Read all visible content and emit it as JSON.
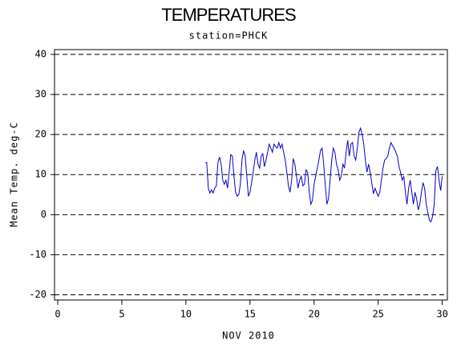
{
  "chart_data": {
    "type": "line",
    "title": "TEMPERATURES",
    "subtitle": "station=PHCK",
    "x_label": "NOV 2010",
    "y_label": "Mean Temp. deg-C",
    "xlim": [
      -0.25,
      30.4
    ],
    "xticks": [
      0,
      5,
      10,
      15,
      20,
      25,
      30
    ],
    "ylim": [
      -21.3,
      41.2
    ],
    "yticks": [
      -20,
      -10,
      0,
      10,
      20,
      30,
      40
    ],
    "grid": true,
    "x": [
      11.5,
      11.625,
      11.75,
      11.875,
      12,
      12.125,
      12.25,
      12.375,
      12.5,
      12.625,
      12.75,
      12.875,
      13,
      13.125,
      13.25,
      13.375,
      13.5,
      13.625,
      13.75,
      13.875,
      14,
      14.125,
      14.25,
      14.375,
      14.5,
      14.625,
      14.75,
      14.875,
      15,
      15.125,
      15.25,
      15.375,
      15.5,
      15.625,
      15.75,
      15.875,
      16,
      16.125,
      16.25,
      16.375,
      16.5,
      16.625,
      16.75,
      16.875,
      17,
      17.125,
      17.25,
      17.375,
      17.5,
      17.625,
      17.75,
      17.875,
      18,
      18.125,
      18.25,
      18.375,
      18.5,
      18.625,
      18.75,
      18.875,
      19,
      19.125,
      19.25,
      19.375,
      19.5,
      19.625,
      19.75,
      19.875,
      20,
      20.125,
      20.25,
      20.375,
      20.5,
      20.625,
      20.75,
      20.875,
      21,
      21.125,
      21.25,
      21.375,
      21.5,
      21.625,
      21.75,
      21.875,
      22,
      22.125,
      22.25,
      22.375,
      22.5,
      22.625,
      22.75,
      22.875,
      23,
      23.125,
      23.25,
      23.375,
      23.5,
      23.625,
      23.75,
      23.875,
      24,
      24.125,
      24.25,
      24.375,
      24.5,
      24.625,
      24.75,
      24.875,
      25,
      25.125,
      25.25,
      25.375,
      25.5,
      25.625,
      25.75,
      25.875,
      26,
      26.125,
      26.25,
      26.375,
      26.5,
      26.625,
      26.75,
      26.875,
      27,
      27.125,
      27.25,
      27.375,
      27.5,
      27.625,
      27.75,
      27.875,
      28,
      28.125,
      28.25,
      28.375,
      28.5,
      28.625,
      28.75,
      28.875,
      29,
      29.125,
      29.25,
      29.375,
      29.5,
      29.625,
      29.75,
      29.875,
      30
    ],
    "series": [
      {
        "name": "Mean Temp",
        "color": "#0000cc",
        "values": [
          13,
          13,
          6.6,
          5.4,
          6.2,
          5.4,
          6.6,
          7.2,
          13,
          14.4,
          12.6,
          8.6,
          7.6,
          8.6,
          6.6,
          10.6,
          15,
          14.6,
          9.6,
          5.6,
          4.6,
          5,
          7.6,
          13.6,
          16,
          14.6,
          9.6,
          4.6,
          5.6,
          8,
          10.6,
          13.6,
          15.6,
          12.6,
          11.6,
          14.6,
          15.2,
          12,
          13.6,
          15.6,
          17.6,
          16.6,
          15.6,
          17.6,
          17,
          16.6,
          18,
          16.6,
          17.6,
          15.6,
          13.6,
          10.6,
          7.2,
          5.6,
          8.6,
          14,
          12.6,
          9.6,
          6.6,
          8.6,
          9.6,
          7.2,
          7.6,
          11.2,
          10.6,
          5.6,
          2.6,
          3.6,
          7.6,
          9.6,
          11.6,
          13.6,
          16,
          16.6,
          12.6,
          7.2,
          2.6,
          4,
          8.6,
          13.6,
          16.6,
          15.6,
          12.6,
          11.2,
          8.6,
          9.6,
          12.6,
          11.6,
          15.6,
          18.6,
          14.6,
          17.6,
          18,
          14.6,
          13.6,
          16.6,
          20.6,
          21.6,
          20,
          17.6,
          13.6,
          10.6,
          12.6,
          10.6,
          8,
          5.2,
          6.6,
          5.6,
          4.6,
          5.6,
          8.6,
          11.6,
          13.6,
          14,
          14.6,
          16.6,
          18,
          17.2,
          16.6,
          15.6,
          14.6,
          12,
          10.6,
          8.6,
          9.6,
          5.6,
          2.6,
          6.6,
          8.6,
          5.6,
          2.6,
          5.6,
          4,
          1.2,
          2.6,
          5.6,
          8,
          6.6,
          2.6,
          0.6,
          -1.4,
          -1.8,
          -0.4,
          2.6,
          11,
          12,
          8.6,
          6,
          9.6
        ]
      }
    ]
  }
}
